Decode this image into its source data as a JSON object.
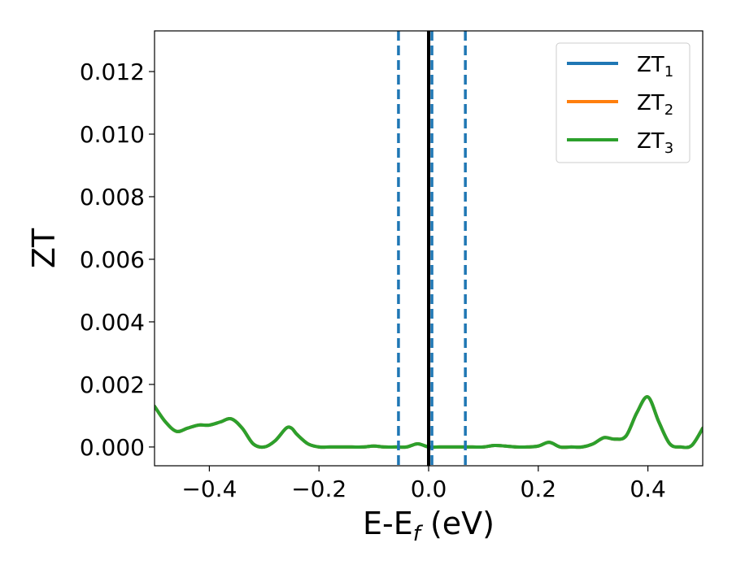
{
  "chart_data": {
    "type": "line",
    "xlabel": {
      "main": "E-E",
      "sub": "f",
      "unit": " (eV)"
    },
    "ylabel": "ZT",
    "xlim": [
      -0.5,
      0.5
    ],
    "ylim": [
      -0.0006,
      0.0133
    ],
    "xticks": [
      {
        "value": -0.4,
        "label": "−0.4"
      },
      {
        "value": -0.2,
        "label": "−0.2"
      },
      {
        "value": 0.0,
        "label": "0.0"
      },
      {
        "value": 0.2,
        "label": "0.2"
      },
      {
        "value": 0.4,
        "label": "0.4"
      }
    ],
    "yticks": [
      {
        "value": 0.0,
        "label": "0.000"
      },
      {
        "value": 0.002,
        "label": "0.002"
      },
      {
        "value": 0.004,
        "label": "0.004"
      },
      {
        "value": 0.006,
        "label": "0.006"
      },
      {
        "value": 0.008,
        "label": "0.008"
      },
      {
        "value": 0.01,
        "label": "0.010"
      },
      {
        "value": 0.012,
        "label": "0.012"
      }
    ],
    "grid": false,
    "legend_position": "top-right",
    "x": [
      -0.5,
      -0.48,
      -0.46,
      -0.44,
      -0.42,
      -0.4,
      -0.38,
      -0.36,
      -0.34,
      -0.32,
      -0.3,
      -0.28,
      -0.26,
      -0.25,
      -0.24,
      -0.22,
      -0.2,
      -0.18,
      -0.16,
      -0.14,
      -0.12,
      -0.1,
      -0.08,
      -0.06,
      -0.04,
      -0.02,
      0.0,
      0.02,
      0.04,
      0.06,
      0.08,
      0.1,
      0.12,
      0.14,
      0.16,
      0.18,
      0.2,
      0.22,
      0.24,
      0.26,
      0.28,
      0.3,
      0.32,
      0.34,
      0.36,
      0.38,
      0.4,
      0.42,
      0.44,
      0.46,
      0.48,
      0.5
    ],
    "series": [
      {
        "name_main": "ZT",
        "name_sub": "1",
        "color": "#1f77b4",
        "y": [
          0.0013,
          0.0008,
          0.0005,
          0.0006,
          0.0007,
          0.0007,
          0.0008,
          0.0009,
          0.0006,
          0.0001,
          0.0,
          0.0002,
          0.0006,
          0.0006,
          0.0004,
          0.0001,
          0.0,
          0.0,
          0.0,
          0.0,
          0.0,
          3e-05,
          0.0,
          0.0,
          0.0,
          0.0001,
          0.0,
          0.0,
          0.0,
          0.0,
          0.0,
          0.0,
          5e-05,
          3e-05,
          0.0,
          0.0,
          3e-05,
          0.00015,
          0.0,
          0.0,
          0.0,
          0.0001,
          0.0003,
          0.00025,
          0.00035,
          0.0011,
          0.0016,
          0.0008,
          0.0001,
          0.0,
          5e-05,
          0.0006
        ]
      },
      {
        "name_main": "ZT",
        "name_sub": "2",
        "color": "#ff7f0e",
        "y": [
          0.0013,
          0.0008,
          0.0005,
          0.0006,
          0.0007,
          0.0007,
          0.0008,
          0.0009,
          0.0006,
          0.0001,
          0.0,
          0.0002,
          0.0006,
          0.0006,
          0.0004,
          0.0001,
          0.0,
          0.0,
          0.0,
          0.0,
          0.0,
          3e-05,
          0.0,
          0.0,
          0.0,
          0.0001,
          0.0,
          0.0,
          0.0,
          0.0,
          0.0,
          0.0,
          5e-05,
          3e-05,
          0.0,
          0.0,
          3e-05,
          0.00015,
          0.0,
          0.0,
          0.0,
          0.0001,
          0.0003,
          0.00025,
          0.00035,
          0.0011,
          0.0016,
          0.0008,
          0.0001,
          0.0,
          5e-05,
          0.0006
        ]
      },
      {
        "name_main": "ZT",
        "name_sub": "3",
        "color": "#2ca02c",
        "y": [
          0.0013,
          0.0008,
          0.0005,
          0.0006,
          0.0007,
          0.0007,
          0.0008,
          0.0009,
          0.0006,
          0.0001,
          0.0,
          0.0002,
          0.0006,
          0.0006,
          0.0004,
          0.0001,
          0.0,
          0.0,
          0.0,
          0.0,
          0.0,
          3e-05,
          0.0,
          0.0,
          0.0,
          0.0001,
          0.0,
          0.0,
          0.0,
          0.0,
          0.0,
          0.0,
          5e-05,
          3e-05,
          0.0,
          0.0,
          3e-05,
          0.00015,
          0.0,
          0.0,
          0.0,
          0.0001,
          0.0003,
          0.00025,
          0.00035,
          0.0011,
          0.0016,
          0.0008,
          0.0001,
          0.0,
          5e-05,
          0.0006
        ]
      }
    ],
    "vertical_lines": [
      {
        "x": 0.0,
        "color": "#000000",
        "style": "solid"
      },
      {
        "x": -0.055,
        "color": "#1f77b4",
        "style": "dashed"
      },
      {
        "x": 0.006,
        "color": "#1f77b4",
        "style": "dashed"
      },
      {
        "x": 0.067,
        "color": "#1f77b4",
        "style": "dashed"
      }
    ]
  }
}
